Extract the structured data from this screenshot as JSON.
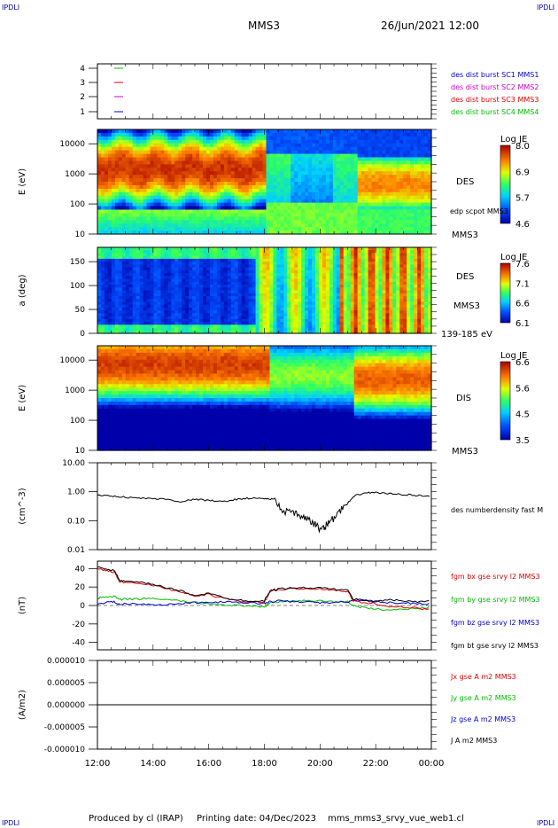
{
  "header": {
    "corner_label": "IPDLI",
    "mission": "MMS3",
    "datetime": "26/Jun/2021 12:00"
  },
  "footer": {
    "produced_by": "Produced by cl (IRAP)",
    "printing_date": "Printing date: 04/Dec/2023",
    "filename": "mms_mms3_srvy_vue_web1.cl"
  },
  "colors": {
    "mms1": "#0000cc",
    "mms2": "#cc00cc",
    "mms3": "#dd0000",
    "mms4": "#00bb00",
    "bx": "#dd0000",
    "by": "#00bb00",
    "bz": "#0000cc",
    "bt": "#000000"
  },
  "chart_data": [
    {
      "type": "line",
      "panel": "spacecraft-legend",
      "yticks": [
        "4",
        "3",
        "2",
        "1"
      ],
      "legend": [
        {
          "label": "des dist burst SC1 MMS1",
          "color": "#0000cc"
        },
        {
          "label": "des dist burst SC2 MMS2",
          "color": "#cc00cc"
        },
        {
          "label": "des dist burst SC3 MMS3",
          "color": "#dd0000"
        },
        {
          "label": "des dist burst SC4 MMS4",
          "color": "#00bb00"
        }
      ]
    },
    {
      "type": "heatmap",
      "panel": "des-energy",
      "ylabel": "E (eV)",
      "yscale": "log",
      "ylim": [
        10,
        30000
      ],
      "yticks": [
        "10000",
        "1000",
        "100",
        "10"
      ],
      "colorbar": {
        "title": "Log JE",
        "ticks": [
          "8.0",
          "6.9",
          "5.7",
          "4.6"
        ]
      },
      "annotations": [
        "DES",
        "edp scpot MMS3",
        "MMS3"
      ]
    },
    {
      "type": "heatmap",
      "panel": "des-pitch-angle",
      "ylabel": "a (deg)",
      "ylim": [
        0,
        180
      ],
      "yticks": [
        "150",
        "100",
        "50",
        "0"
      ],
      "colorbar": {
        "title": "Log JE",
        "ticks": [
          "7.6",
          "7.1",
          "6.6",
          "6.1"
        ]
      },
      "annotations": [
        "DES",
        "MMS3",
        "139-185 eV"
      ]
    },
    {
      "type": "heatmap",
      "panel": "dis-energy",
      "ylabel": "E (eV)",
      "yscale": "log",
      "ylim": [
        10,
        30000
      ],
      "yticks": [
        "10000",
        "1000",
        "100",
        "10"
      ],
      "colorbar": {
        "title": "Log JE",
        "ticks": [
          "6.6",
          "5.6",
          "4.5",
          "3.5"
        ]
      },
      "annotations": [
        "DIS",
        "MMS3"
      ]
    },
    {
      "type": "line",
      "panel": "density",
      "ylabel": "(cm^-3)",
      "yscale": "log",
      "ylim": [
        0.01,
        10
      ],
      "yticks": [
        "10.00",
        "1.00",
        "0.10",
        "0.01"
      ],
      "legend": [
        {
          "label": "des numberdensity fast M",
          "color": "#000000"
        }
      ],
      "x": [
        12.0,
        12.5,
        13.0,
        13.5,
        14.0,
        14.5,
        15.0,
        15.5,
        16.0,
        16.5,
        17.0,
        17.5,
        18.0,
        18.3,
        18.6,
        19.0,
        19.3,
        19.6,
        19.8,
        20.0,
        20.2,
        20.4,
        20.7,
        21.0,
        21.3,
        21.6,
        22.0,
        22.5,
        23.0,
        23.5,
        24.0
      ],
      "y": [
        0.75,
        0.72,
        0.65,
        0.6,
        0.58,
        0.55,
        0.45,
        0.55,
        0.5,
        0.45,
        0.55,
        0.6,
        0.58,
        0.55,
        0.25,
        0.18,
        0.15,
        0.1,
        0.08,
        0.05,
        0.07,
        0.1,
        0.2,
        0.4,
        0.75,
        0.9,
        0.95,
        0.85,
        0.8,
        0.75,
        0.7
      ]
    },
    {
      "type": "line",
      "panel": "magnetic-field",
      "ylabel": "(nT)",
      "ylim": [
        -48,
        48
      ],
      "yticks": [
        "40",
        "20",
        "0",
        "-20",
        "-40"
      ],
      "x": [
        12.0,
        12.3,
        12.6,
        12.8,
        13.0,
        13.5,
        14.0,
        14.5,
        15.0,
        15.5,
        16.0,
        16.5,
        17.0,
        17.5,
        18.0,
        18.2,
        18.5,
        19.0,
        19.5,
        20.0,
        20.5,
        21.0,
        21.2,
        21.5,
        22.0,
        22.5,
        23.0,
        23.5,
        24.0
      ],
      "series": [
        {
          "name": "fgm bx gse srvy l2 MMS3",
          "values": [
            40,
            38,
            36,
            26,
            25,
            24,
            22,
            18,
            15,
            10,
            12,
            8,
            5,
            4,
            3,
            15,
            17,
            18,
            18,
            18,
            17,
            15,
            5,
            3,
            2,
            -1,
            -2,
            -3,
            -5
          ]
        },
        {
          "name": "fgm by gse srvy l2 MMS3",
          "values": [
            8,
            9,
            10,
            6,
            7,
            7,
            8,
            6,
            5,
            3,
            2,
            1,
            0,
            -1,
            -2,
            3,
            4,
            5,
            5,
            5,
            4,
            4,
            0,
            -2,
            -4,
            -5,
            -4,
            -3,
            -2
          ]
        },
        {
          "name": "fgm bz gse srvy l2 MMS3",
          "values": [
            2,
            3,
            4,
            1,
            2,
            2,
            1,
            1,
            2,
            3,
            3,
            4,
            3,
            3,
            2,
            4,
            5,
            4,
            4,
            3,
            3,
            4,
            5,
            6,
            4,
            3,
            3,
            2,
            2
          ]
        },
        {
          "name": "fgm bt gse srvy l2 MMS3",
          "values": [
            42,
            40,
            38,
            27,
            26,
            25,
            23,
            19,
            16,
            11,
            13,
            9,
            6,
            5,
            5,
            16,
            18,
            19,
            19,
            19,
            18,
            16,
            7,
            6,
            5,
            6,
            5,
            4,
            6
          ]
        }
      ]
    },
    {
      "type": "line",
      "panel": "current-density",
      "ylabel": "(A/m2)",
      "ylim": [
        -1e-05,
        1e-05
      ],
      "yticks": [
        "0.000010",
        "0.000005",
        "0.000000",
        "-0.000005",
        "-0.000010"
      ],
      "x": [
        12,
        14,
        16,
        18,
        20,
        22,
        24
      ],
      "series": [
        {
          "name": "Jx gse A m2 MMS3",
          "values": [
            0,
            0,
            0,
            0,
            0,
            0,
            0
          ]
        },
        {
          "name": "Jy gse A m2 MMS3",
          "values": [
            0,
            0,
            0,
            0,
            0,
            0,
            0
          ]
        },
        {
          "name": "Jz gse A m2 MMS3",
          "values": [
            0,
            0,
            0,
            0,
            0,
            0,
            0
          ]
        },
        {
          "name": "J A m2 MMS3",
          "values": [
            0,
            0,
            0,
            0,
            0,
            0,
            0
          ]
        }
      ]
    }
  ],
  "time_axis": {
    "ticks": [
      "12:00",
      "14:00",
      "16:00",
      "18:00",
      "20:00",
      "22:00",
      "00:00"
    ],
    "range_hours": [
      12,
      24
    ]
  }
}
